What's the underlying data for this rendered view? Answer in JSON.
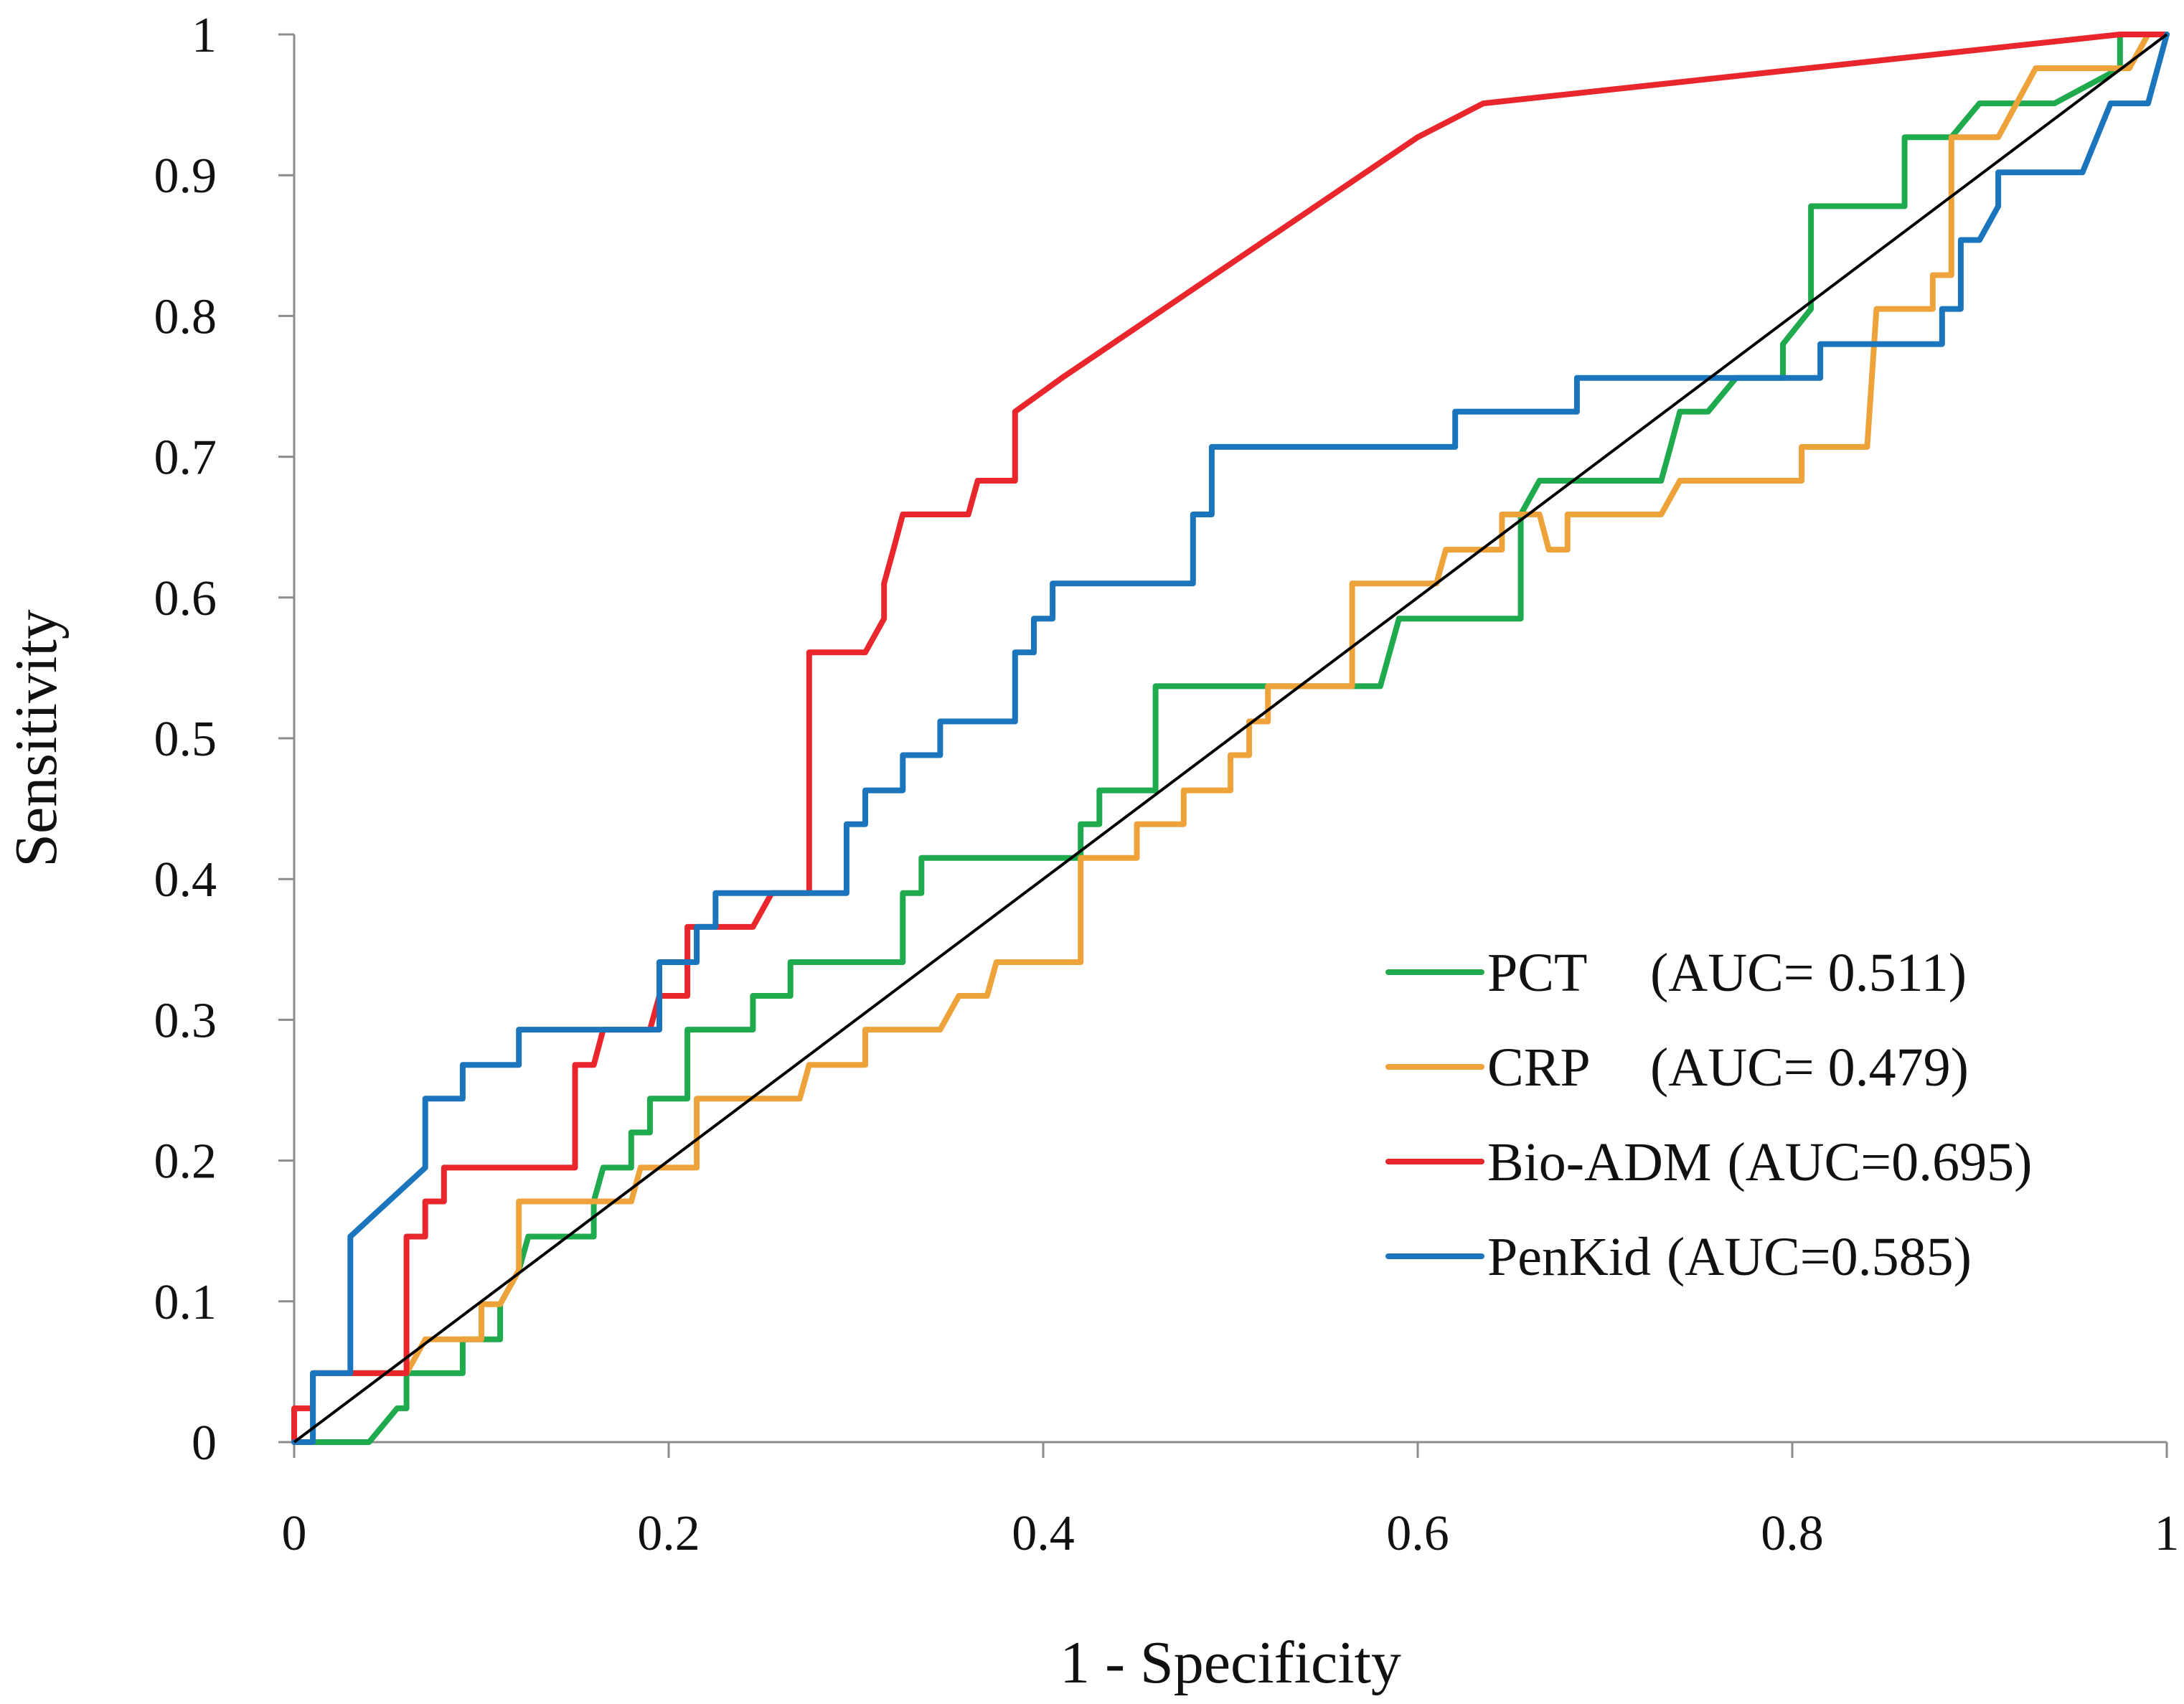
{
  "chart_data": {
    "type": "line",
    "title": "",
    "xlabel": "1 - Specificity",
    "ylabel": "Sensitivity",
    "xlim": [
      0,
      1
    ],
    "ylim": [
      0,
      1
    ],
    "xticks": [
      0,
      0.2,
      0.4,
      0.6,
      0.8,
      1
    ],
    "xtick_labels": [
      "0",
      "0.2",
      "0.4",
      "0.6",
      "0.8",
      "1"
    ],
    "yticks": [
      0,
      0.1,
      0.2,
      0.3,
      0.4,
      0.5,
      0.6,
      0.7,
      0.8,
      0.9,
      1
    ],
    "ytick_labels": [
      "0",
      "0.1",
      "0.2",
      "0.3",
      "0.4",
      "0.5",
      "0.6",
      "0.7",
      "0.8",
      "0.9",
      "1"
    ],
    "grid": false,
    "legend_position": "lower-right",
    "reference_line": {
      "name": "chance",
      "color": "#000000",
      "points": [
        [
          0,
          0
        ],
        [
          1,
          1
        ]
      ]
    },
    "series": [
      {
        "name": "PCT",
        "legend_label": "PCT",
        "legend_auc": "(AUC= 0.511)",
        "color": "#1faa4e",
        "points": [
          [
            0,
            0
          ],
          [
            0.04,
            0
          ],
          [
            0.055,
            0.024
          ],
          [
            0.06,
            0.024
          ],
          [
            0.06,
            0.049
          ],
          [
            0.09,
            0.049
          ],
          [
            0.09,
            0.073
          ],
          [
            0.11,
            0.073
          ],
          [
            0.11,
            0.098
          ],
          [
            0.12,
            0.122
          ],
          [
            0.125,
            0.146
          ],
          [
            0.16,
            0.146
          ],
          [
            0.16,
            0.171
          ],
          [
            0.165,
            0.195
          ],
          [
            0.18,
            0.195
          ],
          [
            0.18,
            0.22
          ],
          [
            0.19,
            0.22
          ],
          [
            0.19,
            0.244
          ],
          [
            0.21,
            0.244
          ],
          [
            0.21,
            0.293
          ],
          [
            0.245,
            0.293
          ],
          [
            0.245,
            0.317
          ],
          [
            0.265,
            0.317
          ],
          [
            0.265,
            0.341
          ],
          [
            0.325,
            0.341
          ],
          [
            0.325,
            0.39
          ],
          [
            0.335,
            0.39
          ],
          [
            0.335,
            0.415
          ],
          [
            0.42,
            0.415
          ],
          [
            0.42,
            0.439
          ],
          [
            0.43,
            0.439
          ],
          [
            0.43,
            0.463
          ],
          [
            0.46,
            0.463
          ],
          [
            0.46,
            0.537
          ],
          [
            0.58,
            0.537
          ],
          [
            0.59,
            0.585
          ],
          [
            0.655,
            0.585
          ],
          [
            0.655,
            0.659
          ],
          [
            0.665,
            0.683
          ],
          [
            0.73,
            0.683
          ],
          [
            0.735,
            0.707
          ],
          [
            0.74,
            0.732
          ],
          [
            0.755,
            0.732
          ],
          [
            0.77,
            0.756
          ],
          [
            0.795,
            0.756
          ],
          [
            0.795,
            0.78
          ],
          [
            0.81,
            0.805
          ],
          [
            0.81,
            0.878
          ],
          [
            0.86,
            0.878
          ],
          [
            0.86,
            0.927
          ],
          [
            0.885,
            0.927
          ],
          [
            0.9,
            0.951
          ],
          [
            0.94,
            0.951
          ],
          [
            0.975,
            0.976
          ],
          [
            0.975,
            1
          ],
          [
            1,
            1
          ]
        ]
      },
      {
        "name": "CRP",
        "legend_label": "CRP",
        "legend_auc": "(AUC= 0.479)",
        "color": "#eea23a",
        "points": [
          [
            0,
            0
          ],
          [
            0.01,
            0
          ],
          [
            0.01,
            0.049
          ],
          [
            0.06,
            0.049
          ],
          [
            0.07,
            0.073
          ],
          [
            0.1,
            0.073
          ],
          [
            0.1,
            0.098
          ],
          [
            0.11,
            0.098
          ],
          [
            0.12,
            0.122
          ],
          [
            0.12,
            0.171
          ],
          [
            0.18,
            0.171
          ],
          [
            0.185,
            0.195
          ],
          [
            0.215,
            0.195
          ],
          [
            0.215,
            0.244
          ],
          [
            0.27,
            0.244
          ],
          [
            0.275,
            0.268
          ],
          [
            0.305,
            0.268
          ],
          [
            0.305,
            0.293
          ],
          [
            0.345,
            0.293
          ],
          [
            0.355,
            0.317
          ],
          [
            0.37,
            0.317
          ],
          [
            0.375,
            0.341
          ],
          [
            0.42,
            0.341
          ],
          [
            0.42,
            0.415
          ],
          [
            0.45,
            0.415
          ],
          [
            0.45,
            0.439
          ],
          [
            0.475,
            0.439
          ],
          [
            0.475,
            0.463
          ],
          [
            0.5,
            0.463
          ],
          [
            0.5,
            0.488
          ],
          [
            0.51,
            0.488
          ],
          [
            0.51,
            0.512
          ],
          [
            0.52,
            0.512
          ],
          [
            0.52,
            0.537
          ],
          [
            0.565,
            0.537
          ],
          [
            0.565,
            0.61
          ],
          [
            0.61,
            0.61
          ],
          [
            0.615,
            0.634
          ],
          [
            0.645,
            0.634
          ],
          [
            0.645,
            0.659
          ],
          [
            0.665,
            0.659
          ],
          [
            0.67,
            0.634
          ],
          [
            0.68,
            0.634
          ],
          [
            0.68,
            0.659
          ],
          [
            0.73,
            0.659
          ],
          [
            0.74,
            0.683
          ],
          [
            0.805,
            0.683
          ],
          [
            0.805,
            0.707
          ],
          [
            0.84,
            0.707
          ],
          [
            0.845,
            0.805
          ],
          [
            0.875,
            0.805
          ],
          [
            0.875,
            0.829
          ],
          [
            0.885,
            0.829
          ],
          [
            0.885,
            0.927
          ],
          [
            0.91,
            0.927
          ],
          [
            0.93,
            0.976
          ],
          [
            0.98,
            0.976
          ],
          [
            0.99,
            1
          ],
          [
            1,
            1
          ]
        ]
      },
      {
        "name": "Bio-ADM",
        "legend_label": "Bio-ADM",
        "legend_auc": "(AUC=0.695)",
        "color": "#e8262b",
        "points": [
          [
            0,
            0
          ],
          [
            0,
            0.024
          ],
          [
            0.01,
            0.024
          ],
          [
            0.01,
            0.049
          ],
          [
            0.06,
            0.049
          ],
          [
            0.06,
            0.146
          ],
          [
            0.07,
            0.146
          ],
          [
            0.07,
            0.171
          ],
          [
            0.08,
            0.171
          ],
          [
            0.08,
            0.195
          ],
          [
            0.15,
            0.195
          ],
          [
            0.15,
            0.268
          ],
          [
            0.16,
            0.268
          ],
          [
            0.165,
            0.293
          ],
          [
            0.19,
            0.293
          ],
          [
            0.195,
            0.317
          ],
          [
            0.21,
            0.317
          ],
          [
            0.21,
            0.366
          ],
          [
            0.245,
            0.366
          ],
          [
            0.255,
            0.39
          ],
          [
            0.275,
            0.39
          ],
          [
            0.275,
            0.561
          ],
          [
            0.305,
            0.561
          ],
          [
            0.315,
            0.585
          ],
          [
            0.315,
            0.61
          ],
          [
            0.32,
            0.634
          ],
          [
            0.325,
            0.659
          ],
          [
            0.36,
            0.659
          ],
          [
            0.365,
            0.683
          ],
          [
            0.385,
            0.683
          ],
          [
            0.385,
            0.732
          ],
          [
            0.41,
            0.756
          ],
          [
            0.6,
            0.927
          ],
          [
            0.635,
            0.951
          ],
          [
            0.975,
            1
          ],
          [
            1,
            1
          ]
        ]
      },
      {
        "name": "PenKid",
        "legend_label": "PenKid",
        "legend_auc": "(AUC=0.585)",
        "color": "#1a75bc",
        "points": [
          [
            0,
            0
          ],
          [
            0.01,
            0
          ],
          [
            0.01,
            0.049
          ],
          [
            0.03,
            0.049
          ],
          [
            0.03,
            0.146
          ],
          [
            0.07,
            0.195
          ],
          [
            0.07,
            0.244
          ],
          [
            0.09,
            0.244
          ],
          [
            0.09,
            0.268
          ],
          [
            0.12,
            0.268
          ],
          [
            0.12,
            0.293
          ],
          [
            0.195,
            0.293
          ],
          [
            0.195,
            0.341
          ],
          [
            0.215,
            0.341
          ],
          [
            0.215,
            0.366
          ],
          [
            0.225,
            0.366
          ],
          [
            0.225,
            0.39
          ],
          [
            0.295,
            0.39
          ],
          [
            0.295,
            0.439
          ],
          [
            0.305,
            0.439
          ],
          [
            0.305,
            0.463
          ],
          [
            0.325,
            0.463
          ],
          [
            0.325,
            0.488
          ],
          [
            0.345,
            0.488
          ],
          [
            0.345,
            0.512
          ],
          [
            0.385,
            0.512
          ],
          [
            0.385,
            0.561
          ],
          [
            0.395,
            0.561
          ],
          [
            0.395,
            0.585
          ],
          [
            0.405,
            0.585
          ],
          [
            0.405,
            0.61
          ],
          [
            0.48,
            0.61
          ],
          [
            0.48,
            0.659
          ],
          [
            0.49,
            0.659
          ],
          [
            0.49,
            0.707
          ],
          [
            0.62,
            0.707
          ],
          [
            0.62,
            0.732
          ],
          [
            0.685,
            0.732
          ],
          [
            0.685,
            0.756
          ],
          [
            0.815,
            0.756
          ],
          [
            0.815,
            0.78
          ],
          [
            0.88,
            0.78
          ],
          [
            0.88,
            0.805
          ],
          [
            0.89,
            0.805
          ],
          [
            0.89,
            0.854
          ],
          [
            0.9,
            0.854
          ],
          [
            0.91,
            0.878
          ],
          [
            0.91,
            0.902
          ],
          [
            0.955,
            0.902
          ],
          [
            0.97,
            0.951
          ],
          [
            0.99,
            0.951
          ],
          [
            1,
            1
          ]
        ]
      }
    ]
  }
}
